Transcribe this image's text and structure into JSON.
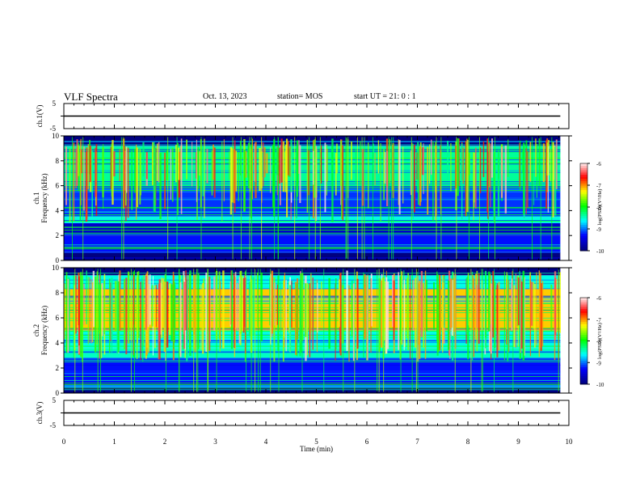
{
  "header": {
    "title": "VLF Spectra",
    "date": "Oct. 13, 2023",
    "station": "station= MOS",
    "start": "start UT =  21: 0  : 1"
  },
  "chart_data": [
    {
      "type": "line",
      "panel": "ch.1 waveform",
      "ylabel": "ch.1(V)",
      "ylim": [
        -5,
        5
      ],
      "yticks": [
        "5",
        "-5"
      ],
      "x": [
        0,
        9.83
      ],
      "values": [
        0,
        0
      ]
    },
    {
      "type": "heatmap",
      "panel": "ch.1 spectrogram",
      "ylabel": "ch.1\nFrequency (kHz)",
      "ylim": [
        0,
        10
      ],
      "yticks": [
        "0",
        "2",
        "4",
        "6",
        "8",
        "10"
      ],
      "xlim": [
        0,
        10
      ],
      "data_extent_min": 9.83,
      "colorbar": {
        "label": "log(PSD)(V²/Hz)",
        "range": [
          -10,
          -6
        ],
        "ticks": [
          "-6",
          "-7",
          "-8",
          "-9",
          "-10"
        ],
        "colors": [
          "#000080",
          "#0000ff",
          "#00ffff",
          "#00ff00",
          "#ffff00",
          "#ff0000",
          "#ffffff"
        ]
      },
      "bands": [
        {
          "low_khz": 0.0,
          "high_khz": 0.7,
          "level": -10.0
        },
        {
          "low_khz": 0.7,
          "high_khz": 2.0,
          "level": -9.3
        },
        {
          "low_khz": 2.0,
          "high_khz": 3.0,
          "level": -9.6
        },
        {
          "low_khz": 3.0,
          "high_khz": 3.5,
          "level": -8.6
        },
        {
          "low_khz": 3.5,
          "high_khz": 6.0,
          "level": -9.2
        },
        {
          "low_khz": 6.0,
          "high_khz": 9.2,
          "level": -8.4
        },
        {
          "low_khz": 9.2,
          "high_khz": 10.0,
          "level": -10.0
        }
      ]
    },
    {
      "type": "heatmap",
      "panel": "ch.2 spectrogram",
      "ylabel": "ch.2\nFrequency (kHz)",
      "ylim": [
        0,
        10
      ],
      "yticks": [
        "0",
        "2",
        "4",
        "6",
        "8",
        "10"
      ],
      "xlim": [
        0,
        10
      ],
      "data_extent_min": 9.83,
      "colorbar": {
        "label": "log(PSD)(V²/Hz)",
        "range": [
          -10,
          -6
        ],
        "ticks": [
          "-6",
          "-7",
          "-8",
          "-9",
          "-10"
        ],
        "colors": [
          "#000080",
          "#0000ff",
          "#00ffff",
          "#00ff00",
          "#ffff00",
          "#ff0000",
          "#ffffff"
        ]
      },
      "bands": [
        {
          "low_khz": 0.0,
          "high_khz": 0.5,
          "level": -10.0
        },
        {
          "low_khz": 0.5,
          "high_khz": 2.8,
          "level": -9.3
        },
        {
          "low_khz": 2.8,
          "high_khz": 3.6,
          "level": -8.5
        },
        {
          "low_khz": 3.6,
          "high_khz": 5.0,
          "level": -8.6
        },
        {
          "low_khz": 5.0,
          "high_khz": 8.3,
          "level": -7.2
        },
        {
          "low_khz": 8.3,
          "high_khz": 9.4,
          "level": -8.6
        },
        {
          "low_khz": 9.4,
          "high_khz": 10.0,
          "level": -10.0
        }
      ]
    },
    {
      "type": "line",
      "panel": "ch.3 waveform",
      "ylabel": "ch.3(V)",
      "ylim": [
        -5,
        5
      ],
      "yticks": [
        "5",
        "-5"
      ],
      "x": [
        0,
        9.83
      ],
      "values": [
        0,
        0
      ]
    }
  ],
  "x_axis": {
    "label": "Time (min)",
    "ticks": [
      "0",
      "1",
      "2",
      "3",
      "4",
      "5",
      "6",
      "7",
      "8",
      "9",
      "10"
    ],
    "range": [
      0,
      10
    ]
  }
}
